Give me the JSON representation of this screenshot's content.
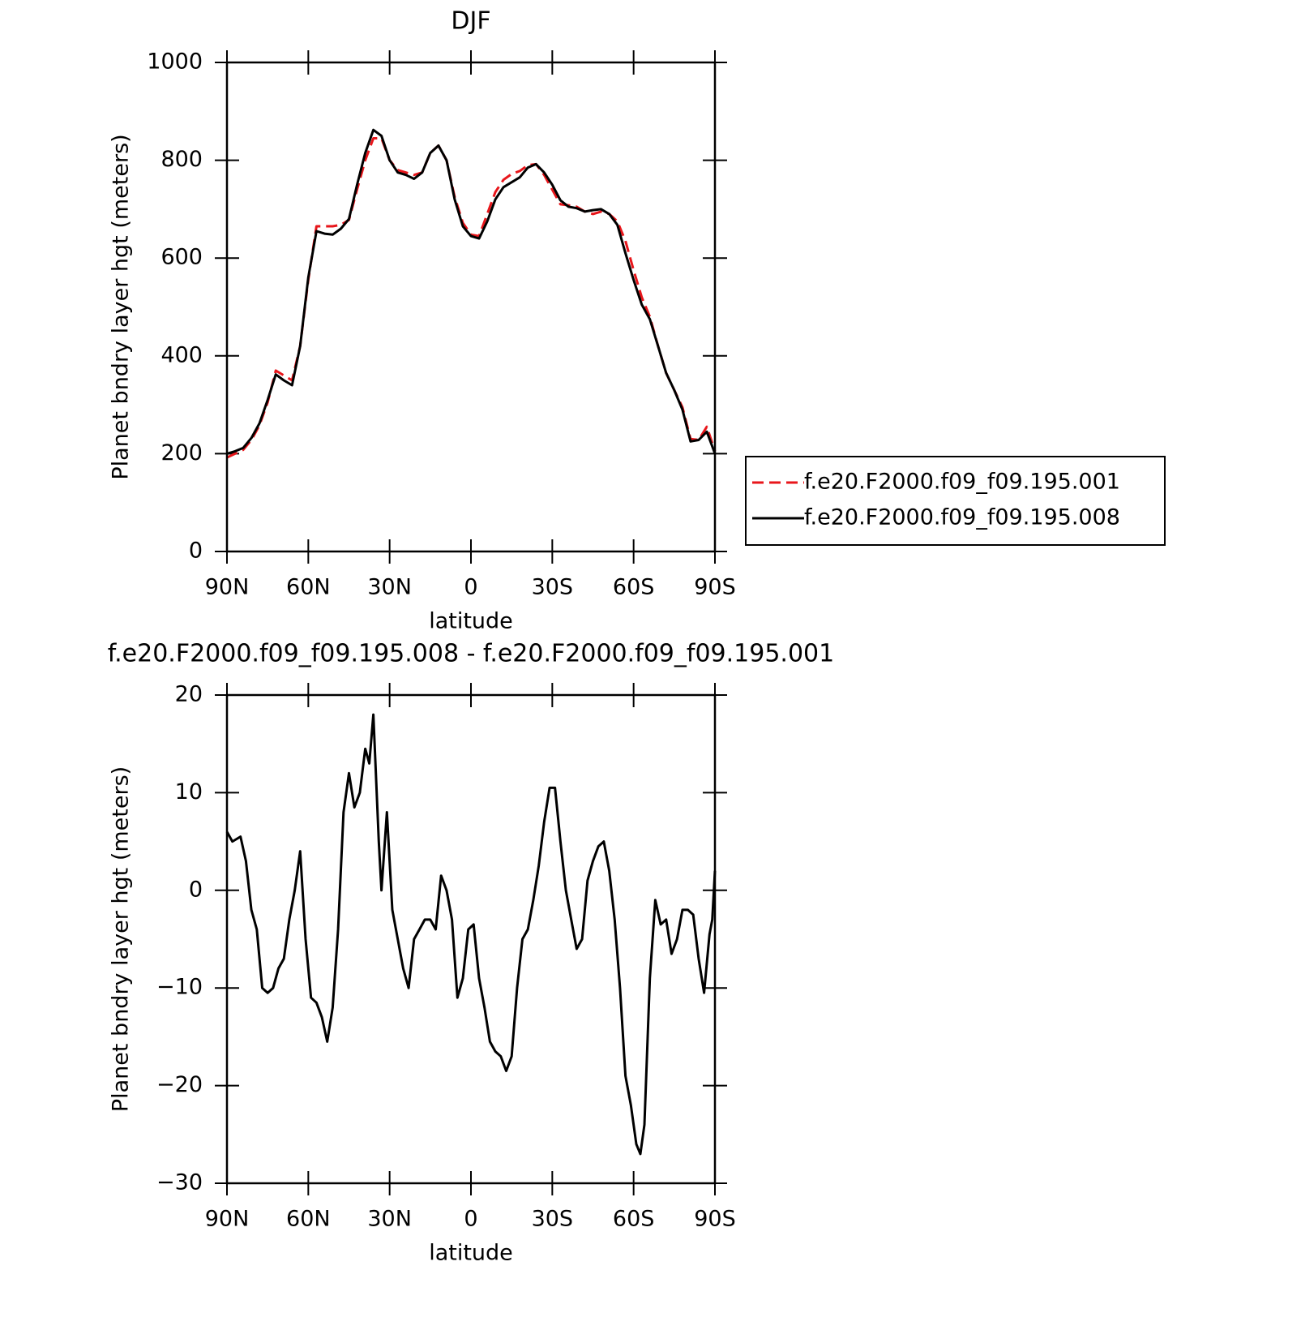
{
  "chart_data": [
    {
      "type": "line",
      "title": "DJF",
      "xlabel": "latitude",
      "ylabel": "Planet bndry layer hgt (meters)",
      "xlim": [
        90,
        -90
      ],
      "ylim": [
        0,
        1000
      ],
      "xticks": [
        {
          "value": 90,
          "label": "90N"
        },
        {
          "value": 60,
          "label": "60N"
        },
        {
          "value": 30,
          "label": "30N"
        },
        0,
        {
          "value": -30,
          "label": "30S"
        },
        {
          "value": -60,
          "label": "60S"
        },
        {
          "value": -90,
          "label": "90S"
        }
      ],
      "yticks": [
        0,
        200,
        400,
        600,
        800,
        1000
      ],
      "legend": "right",
      "x": [
        90,
        87,
        84,
        81,
        78,
        75,
        72,
        69,
        66,
        63,
        60,
        57,
        54,
        51,
        48,
        45,
        42,
        39,
        36,
        33,
        30,
        27,
        24,
        21,
        18,
        15,
        12,
        9,
        6,
        3,
        0,
        -3,
        -6,
        -9,
        -12,
        -15,
        -18,
        -21,
        -24,
        -27,
        -30,
        -33,
        -36,
        -39,
        -42,
        -45,
        -48,
        -51,
        -54,
        -57,
        -60,
        -63,
        -66,
        -69,
        -72,
        -75,
        -78,
        -81,
        -84,
        -87,
        -90
      ],
      "series": [
        {
          "name": "f.e20.F2000.f09_f09.195.001",
          "color": "#e8161b",
          "dashed": true,
          "values": [
            192,
            200,
            208,
            228,
            258,
            305,
            370,
            360,
            350,
            420,
            555,
            665,
            665,
            665,
            668,
            678,
            740,
            800,
            845,
            845,
            800,
            780,
            775,
            770,
            775,
            815,
            830,
            800,
            725,
            672,
            648,
            645,
            690,
            735,
            760,
            772,
            778,
            790,
            792,
            770,
            740,
            710,
            708,
            705,
            695,
            690,
            695,
            690,
            675,
            635,
            575,
            520,
            480,
            420,
            365,
            330,
            295,
            230,
            228,
            255,
            205
          ]
        },
        {
          "name": "f.e20.F2000.f09_f09.195.008",
          "color": "#000000",
          "dashed": false,
          "values": [
            200,
            205,
            212,
            232,
            262,
            310,
            362,
            350,
            340,
            420,
            560,
            655,
            650,
            648,
            660,
            680,
            750,
            815,
            862,
            850,
            800,
            775,
            770,
            762,
            775,
            815,
            830,
            800,
            720,
            665,
            645,
            640,
            675,
            720,
            745,
            755,
            765,
            785,
            792,
            775,
            750,
            718,
            705,
            702,
            695,
            698,
            700,
            690,
            668,
            610,
            555,
            505,
            475,
            420,
            365,
            330,
            290,
            225,
            228,
            245,
            200
          ]
        }
      ]
    },
    {
      "type": "line",
      "title": "f.e20.F2000.f09_f09.195.008 - f.e20.F2000.f09_f09.195.001",
      "xlabel": "latitude",
      "ylabel": "Planet bndry layer hgt (meters)",
      "xlim": [
        90,
        -90
      ],
      "ylim": [
        -30,
        20
      ],
      "xticks": [
        {
          "value": 90,
          "label": "90N"
        },
        {
          "value": 60,
          "label": "60N"
        },
        {
          "value": 30,
          "label": "30N"
        },
        0,
        {
          "value": -30,
          "label": "30S"
        },
        {
          "value": -60,
          "label": "60S"
        },
        {
          "value": -90,
          "label": "90S"
        }
      ],
      "yticks": [
        {
          "value": -30,
          "label": "−30"
        },
        {
          "value": -20,
          "label": "−20"
        },
        {
          "value": -10,
          "label": "−10"
        },
        0,
        10,
        20
      ],
      "x": [
        90,
        88,
        85,
        83,
        81,
        79,
        77,
        75,
        73,
        71,
        69,
        67,
        65,
        63,
        61,
        59,
        57,
        55,
        53,
        51,
        49,
        47,
        45,
        43,
        41,
        39,
        37.5,
        36,
        34,
        33,
        31,
        29,
        27,
        25,
        23,
        21,
        19,
        17,
        15,
        13,
        11,
        9,
        7,
        5,
        3,
        1,
        -1,
        -3,
        -5,
        -7,
        -9,
        -11,
        -13,
        -15,
        -17,
        -19,
        -21,
        -23,
        -25,
        -27,
        -29,
        -31,
        -33,
        -35,
        -37,
        -39,
        -41,
        -43,
        -45,
        -47,
        -49,
        -51,
        -53,
        -55,
        -57,
        -59,
        -61,
        -62.5,
        -64,
        -66,
        -68,
        -70,
        -72,
        -74,
        -76,
        -78,
        -80,
        -82,
        -84,
        -86,
        -88,
        -89,
        -90
      ],
      "series": [
        {
          "name": "f.e20.F2000.f09_f09.195.008 - f.e20.F2000.f09_f09.195.001",
          "color": "#000000",
          "dashed": false,
          "values": [
            6,
            5,
            5.5,
            3,
            -2,
            -4,
            -10,
            -10.5,
            -10,
            -8,
            -7,
            -3,
            0,
            4,
            -5,
            -11,
            -11.5,
            -13,
            -15.5,
            -12,
            -4,
            8,
            12,
            8.5,
            10,
            14.5,
            13,
            18,
            5,
            0,
            8,
            -2,
            -5,
            -8,
            -10,
            -5,
            -4,
            -3,
            -3,
            -4,
            1.5,
            0,
            -3,
            -11,
            -9,
            -4,
            -3.5,
            -9,
            -12,
            -15.5,
            -16.5,
            -17,
            -18.5,
            -17,
            -10,
            -5,
            -4,
            -1,
            2.5,
            7,
            10.5,
            10.5,
            5,
            0,
            -3,
            -6,
            -5,
            1,
            3,
            4.5,
            5,
            2,
            -3,
            -10,
            -19,
            -22,
            -26,
            -27,
            -24,
            -9,
            -1,
            -3.5,
            -3,
            -6.5,
            -5,
            -2,
            -2,
            -2.5,
            -7,
            -10.5,
            -4.5,
            -3,
            2
          ]
        }
      ]
    }
  ]
}
